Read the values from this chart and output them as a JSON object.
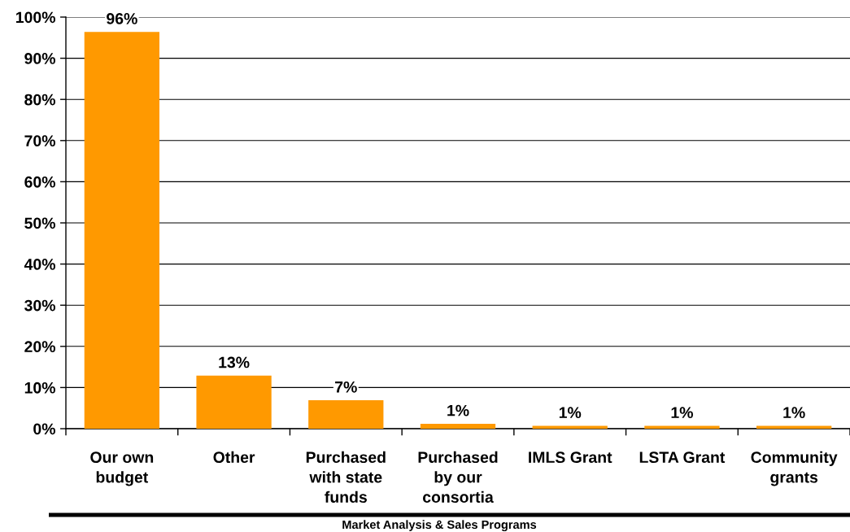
{
  "chart_data": {
    "type": "bar",
    "categories": [
      "Our own budget",
      "Other",
      "Purchased with state funds",
      "Purchased by our consortia",
      "IMLS Grant",
      "LSTA Grant",
      "Community grants"
    ],
    "values": [
      96.4,
      12.9,
      6.9,
      1.2,
      0.7,
      0.7,
      0.7
    ],
    "value_labels": [
      "96%",
      "13%",
      "7%",
      "1%",
      "1%",
      "1%",
      "1%"
    ],
    "color": "#ff9900",
    "ylim": [
      0,
      100
    ],
    "yticks": [
      {
        "value": 0,
        "label": "0%"
      },
      {
        "value": 10,
        "label": "10%"
      },
      {
        "value": 20,
        "label": "20%"
      },
      {
        "value": 30,
        "label": "30%"
      },
      {
        "value": 40,
        "label": "40%"
      },
      {
        "value": 50,
        "label": "50%"
      },
      {
        "value": 60,
        "label": "60%"
      },
      {
        "value": 70,
        "label": "70%"
      },
      {
        "value": 80,
        "label": "80%"
      },
      {
        "value": 90,
        "label": "90%"
      },
      {
        "value": 100,
        "label": "100%"
      }
    ],
    "grid": "y",
    "annotations": [
      "Market Analysis & Sales Programs"
    ]
  }
}
